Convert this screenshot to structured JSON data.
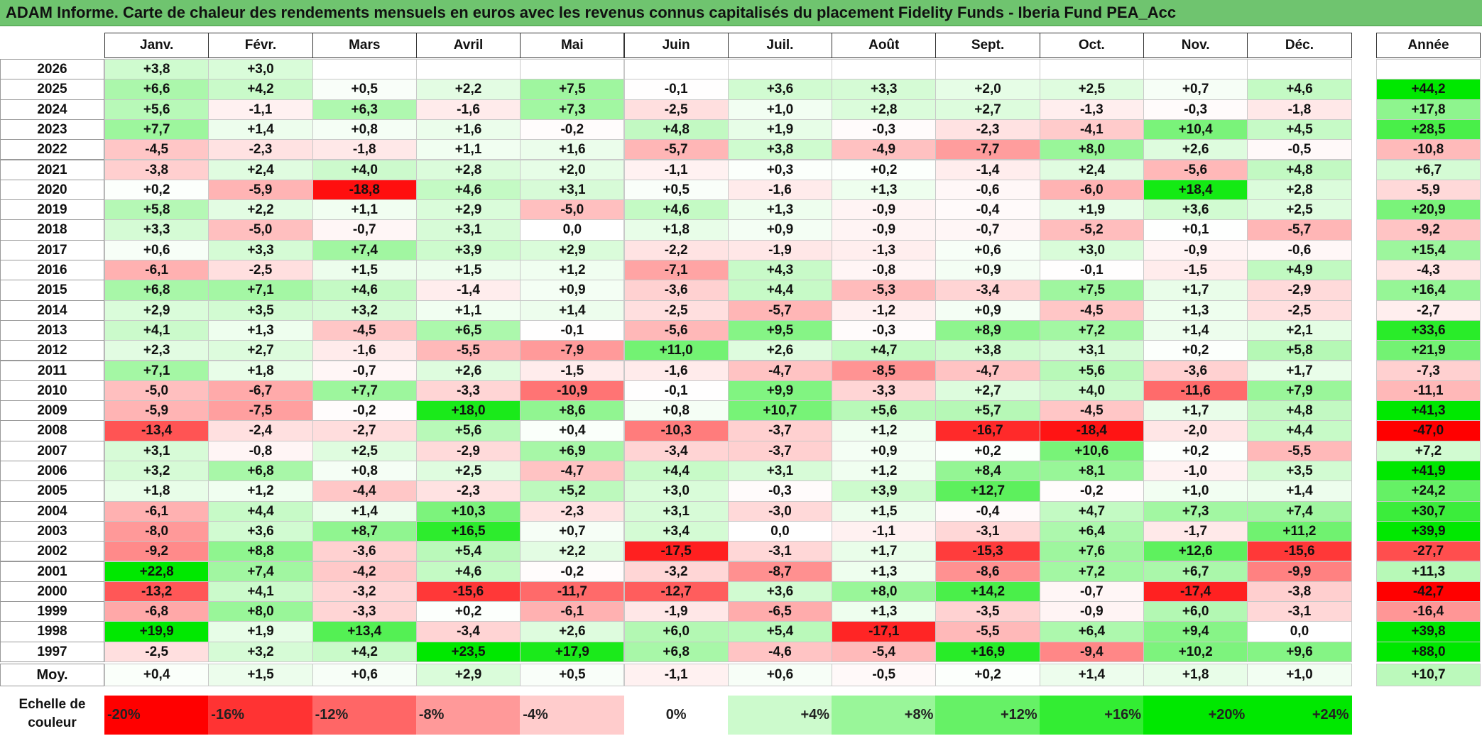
{
  "title": "ADAM Informe. Carte de chaleur des rendements mensuels en euros avec les revenus connus capitalisés du placement Fidelity Funds - Iberia Fund PEA_Acc",
  "colors": {
    "title_bg": "#6fc46f",
    "negative_max": "#ff0000",
    "positive_max": "#00e000",
    "neutral": "#ffffff"
  },
  "chart_data": {
    "type": "heatmap",
    "title": "ADAM Informe. Carte de chaleur des rendements mensuels en euros avec les revenus connus capitalisés du placement Fidelity Funds - Iberia Fund PEA_Acc",
    "months": [
      "Janv.",
      "Févr.",
      "Mars",
      "Avril",
      "Mai",
      "Juin",
      "Juil.",
      "Août",
      "Sept.",
      "Oct.",
      "Nov.",
      "Déc."
    ],
    "year_header": "Année",
    "rows": [
      {
        "year": "2026",
        "months": [
          "+3,8",
          "+3,0",
          "",
          "",
          "",
          "",
          "",
          "",
          "",
          "",
          "",
          ""
        ],
        "annual": ""
      },
      {
        "year": "2025",
        "months": [
          "+6,6",
          "+4,2",
          "+0,5",
          "+2,2",
          "+7,5",
          "-0,1",
          "+3,6",
          "+3,3",
          "+2,0",
          "+2,5",
          "+0,7",
          "+4,6"
        ],
        "annual": "+44,2"
      },
      {
        "year": "2024",
        "months": [
          "+5,6",
          "-1,1",
          "+6,3",
          "-1,6",
          "+7,3",
          "-2,5",
          "+1,0",
          "+2,8",
          "+2,7",
          "-1,3",
          "-0,3",
          "-1,8"
        ],
        "annual": "+17,8"
      },
      {
        "year": "2023",
        "months": [
          "+7,7",
          "+1,4",
          "+0,8",
          "+1,6",
          "-0,2",
          "+4,8",
          "+1,9",
          "-0,3",
          "-2,3",
          "-4,1",
          "+10,4",
          "+4,5"
        ],
        "annual": "+28,5"
      },
      {
        "year": "2022",
        "months": [
          "-4,5",
          "-2,3",
          "-1,8",
          "+1,1",
          "+1,6",
          "-5,7",
          "+3,8",
          "-4,9",
          "-7,7",
          "+8,0",
          "+2,6",
          "-0,5"
        ],
        "annual": "-10,8"
      },
      {
        "year": "2021",
        "months": [
          "-3,8",
          "+2,4",
          "+4,0",
          "+2,8",
          "+2,0",
          "-1,1",
          "+0,3",
          "+0,2",
          "-1,4",
          "+2,4",
          "-5,6",
          "+4,8"
        ],
        "annual": "+6,7"
      },
      {
        "year": "2020",
        "months": [
          "+0,2",
          "-5,9",
          "-18,8",
          "+4,6",
          "+3,1",
          "+0,5",
          "-1,6",
          "+1,3",
          "-0,6",
          "-6,0",
          "+18,4",
          "+2,8"
        ],
        "annual": "-5,9"
      },
      {
        "year": "2019",
        "months": [
          "+5,8",
          "+2,2",
          "+1,1",
          "+2,9",
          "-5,0",
          "+4,6",
          "+1,3",
          "-0,9",
          "-0,4",
          "+1,9",
          "+3,6",
          "+2,5"
        ],
        "annual": "+20,9"
      },
      {
        "year": "2018",
        "months": [
          "+3,3",
          "-5,0",
          "-0,7",
          "+3,1",
          "0,0",
          "+1,8",
          "+0,9",
          "-0,9",
          "-0,7",
          "-5,2",
          "+0,1",
          "-5,7"
        ],
        "annual": "-9,2"
      },
      {
        "year": "2017",
        "months": [
          "+0,6",
          "+3,3",
          "+7,4",
          "+3,9",
          "+2,9",
          "-2,2",
          "-1,9",
          "-1,3",
          "+0,6",
          "+3,0",
          "-0,9",
          "-0,6"
        ],
        "annual": "+15,4"
      },
      {
        "year": "2016",
        "months": [
          "-6,1",
          "-2,5",
          "+1,5",
          "+1,5",
          "+1,2",
          "-7,1",
          "+4,3",
          "-0,8",
          "+0,9",
          "-0,1",
          "-1,5",
          "+4,9"
        ],
        "annual": "-4,3"
      },
      {
        "year": "2015",
        "months": [
          "+6,8",
          "+7,1",
          "+4,6",
          "-1,4",
          "+0,9",
          "-3,6",
          "+4,4",
          "-5,3",
          "-3,4",
          "+7,5",
          "+1,7",
          "-2,9"
        ],
        "annual": "+16,4"
      },
      {
        "year": "2014",
        "months": [
          "+2,9",
          "+3,5",
          "+3,2",
          "+1,1",
          "+1,4",
          "-2,5",
          "-5,7",
          "-1,2",
          "+0,9",
          "-4,5",
          "+1,3",
          "-2,5"
        ],
        "annual": "-2,7"
      },
      {
        "year": "2013",
        "months": [
          "+4,1",
          "+1,3",
          "-4,5",
          "+6,5",
          "-0,1",
          "-5,6",
          "+9,5",
          "-0,3",
          "+8,9",
          "+7,2",
          "+1,4",
          "+2,1"
        ],
        "annual": "+33,6"
      },
      {
        "year": "2012",
        "months": [
          "+2,3",
          "+2,7",
          "-1,6",
          "-5,5",
          "-7,9",
          "+11,0",
          "+2,6",
          "+4,7",
          "+3,8",
          "+3,1",
          "+0,2",
          "+5,8"
        ],
        "annual": "+21,9"
      },
      {
        "year": "2011",
        "months": [
          "+7,1",
          "+1,8",
          "-0,7",
          "+2,6",
          "-1,5",
          "-1,6",
          "-4,7",
          "-8,5",
          "-4,7",
          "+5,6",
          "-3,6",
          "+1,7"
        ],
        "annual": "-7,3"
      },
      {
        "year": "2010",
        "months": [
          "-5,0",
          "-6,7",
          "+7,7",
          "-3,3",
          "-10,9",
          "-0,1",
          "+9,9",
          "-3,3",
          "+2,7",
          "+4,0",
          "-11,6",
          "+7,9"
        ],
        "annual": "-11,1"
      },
      {
        "year": "2009",
        "months": [
          "-5,9",
          "-7,5",
          "-0,2",
          "+18,0",
          "+8,6",
          "+0,8",
          "+10,7",
          "+5,6",
          "+5,7",
          "-4,5",
          "+1,7",
          "+4,8"
        ],
        "annual": "+41,3"
      },
      {
        "year": "2008",
        "months": [
          "-13,4",
          "-2,4",
          "-2,7",
          "+5,6",
          "+0,4",
          "-10,3",
          "-3,7",
          "+1,2",
          "-16,7",
          "-18,4",
          "-2,0",
          "+4,4"
        ],
        "annual": "-47,0"
      },
      {
        "year": "2007",
        "months": [
          "+3,1",
          "-0,8",
          "+2,5",
          "-2,9",
          "+6,9",
          "-3,4",
          "-3,7",
          "+0,9",
          "+0,2",
          "+10,6",
          "+0,2",
          "-5,5"
        ],
        "annual": "+7,2"
      },
      {
        "year": "2006",
        "months": [
          "+3,2",
          "+6,8",
          "+0,8",
          "+2,5",
          "-4,7",
          "+4,4",
          "+3,1",
          "+1,2",
          "+8,4",
          "+8,1",
          "-1,0",
          "+3,5"
        ],
        "annual": "+41,9"
      },
      {
        "year": "2005",
        "months": [
          "+1,8",
          "+1,2",
          "-4,4",
          "-2,3",
          "+5,2",
          "+3,0",
          "-0,3",
          "+3,9",
          "+12,7",
          "-0,2",
          "+1,0",
          "+1,4"
        ],
        "annual": "+24,2"
      },
      {
        "year": "2004",
        "months": [
          "-6,1",
          "+4,4",
          "+1,4",
          "+10,3",
          "-2,3",
          "+3,1",
          "-3,0",
          "+1,5",
          "-0,4",
          "+4,7",
          "+7,3",
          "+7,4"
        ],
        "annual": "+30,7"
      },
      {
        "year": "2003",
        "months": [
          "-8,0",
          "+3,6",
          "+8,7",
          "+16,5",
          "+0,7",
          "+3,4",
          "0,0",
          "-1,1",
          "-3,1",
          "+6,4",
          "-1,7",
          "+11,2"
        ],
        "annual": "+39,9"
      },
      {
        "year": "2002",
        "months": [
          "-9,2",
          "+8,8",
          "-3,6",
          "+5,4",
          "+2,2",
          "-17,5",
          "-3,1",
          "+1,7",
          "-15,3",
          "+7,6",
          "+12,6",
          "-15,6"
        ],
        "annual": "-27,7"
      },
      {
        "year": "2001",
        "months": [
          "+22,8",
          "+7,4",
          "-4,2",
          "+4,6",
          "-0,2",
          "-3,2",
          "-8,7",
          "+1,3",
          "-8,6",
          "+7,2",
          "+6,7",
          "-9,9"
        ],
        "annual": "+11,3"
      },
      {
        "year": "2000",
        "months": [
          "-13,2",
          "+4,1",
          "-3,2",
          "-15,6",
          "-11,7",
          "-12,7",
          "+3,6",
          "+8,0",
          "+14,2",
          "-0,7",
          "-17,4",
          "-3,8"
        ],
        "annual": "-42,7"
      },
      {
        "year": "1999",
        "months": [
          "-6,8",
          "+8,0",
          "-3,3",
          "+0,2",
          "-6,1",
          "-1,9",
          "-6,5",
          "+1,3",
          "-3,5",
          "-0,9",
          "+6,0",
          "-3,1"
        ],
        "annual": "-16,4"
      },
      {
        "year": "1998",
        "months": [
          "+19,9",
          "+1,9",
          "+13,4",
          "-3,4",
          "+2,6",
          "+6,0",
          "+5,4",
          "-17,1",
          "-5,5",
          "+6,4",
          "+9,4",
          "0,0"
        ],
        "annual": "+39,8"
      },
      {
        "year": "1997",
        "months": [
          "-2,5",
          "+3,2",
          "+4,2",
          "+23,5",
          "+17,9",
          "+6,8",
          "-4,6",
          "-5,4",
          "+16,9",
          "-9,4",
          "+10,2",
          "+9,6"
        ],
        "annual": "+88,0"
      }
    ],
    "average": {
      "label": "Moy.",
      "months": [
        "+0,4",
        "+1,5",
        "+0,6",
        "+2,9",
        "+0,5",
        "-1,1",
        "+0,6",
        "-0,5",
        "+0,2",
        "+1,4",
        "+1,8",
        "+1,0"
      ],
      "annual": "+10,7"
    },
    "scale": {
      "label_line1": "Echelle de",
      "label_line2": "couleur",
      "stops": [
        "-20%",
        "-16%",
        "-12%",
        "-8%",
        "-4%",
        "0%",
        "+4%",
        "+8%",
        "+12%",
        "+16%",
        "+20%",
        "+24%"
      ]
    }
  }
}
